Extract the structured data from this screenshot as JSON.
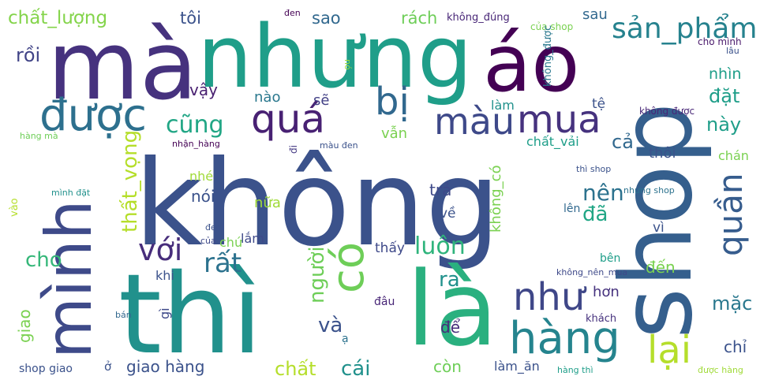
{
  "words": [
    {
      "text": "không",
      "color": "#3b528b"
    },
    {
      "text": "thì",
      "color": "#21918c"
    },
    {
      "text": "là",
      "color": "#2ab07f"
    },
    {
      "text": "shop",
      "color": "#355f8d"
    },
    {
      "text": "mà",
      "color": "#46327e"
    },
    {
      "text": "nhưng",
      "color": "#1f9e89"
    },
    {
      "text": "áo",
      "color": "#440154"
    },
    {
      "text": "mình",
      "color": "#3e4a89"
    },
    {
      "text": "được",
      "color": "#2d708e"
    },
    {
      "text": "có",
      "color": "#6ece58"
    },
    {
      "text": "quá",
      "color": "#482173"
    },
    {
      "text": "màu",
      "color": "#3e4989"
    },
    {
      "text": "mua",
      "color": "#46327e"
    },
    {
      "text": "bị",
      "color": "#31688e"
    },
    {
      "text": "sản_phẩm",
      "color": "#26828e"
    },
    {
      "text": "quần",
      "color": "#365c8d"
    },
    {
      "text": "hàng",
      "color": "#25848e"
    },
    {
      "text": "như",
      "color": "#3f4788"
    },
    {
      "text": "lại",
      "color": "#b5de2b"
    },
    {
      "text": "với",
      "color": "#472d7b"
    },
    {
      "text": "rất",
      "color": "#2c728e"
    },
    {
      "text": "luôn",
      "color": "#2fb47c"
    },
    {
      "text": "chất_lượng",
      "color": "#84d44b"
    },
    {
      "text": "rồi",
      "color": "#414487"
    },
    {
      "text": "tôi",
      "color": "#3b528b"
    },
    {
      "text": "sao",
      "color": "#31688e"
    },
    {
      "text": "rách",
      "color": "#6ece58"
    },
    {
      "text": "không_đúng",
      "color": "#482677"
    },
    {
      "text": "của shop",
      "color": "#7ad151"
    },
    {
      "text": "sau",
      "color": "#31688e"
    },
    {
      "text": "đen",
      "color": "#440154"
    },
    {
      "text": "nó",
      "color": "#a0da39"
    },
    {
      "text": "không_được",
      "color": "#2a788e"
    },
    {
      "text": "cho mình",
      "color": "#48186a"
    },
    {
      "text": "lâu",
      "color": "#3b528b"
    },
    {
      "text": "nhìn",
      "color": "#1f9e89"
    },
    {
      "text": "đặt",
      "color": "#1f9e89"
    },
    {
      "text": "này",
      "color": "#1f9e89"
    },
    {
      "text": "vậy",
      "color": "#481f70"
    },
    {
      "text": "nào",
      "color": "#2a788e"
    },
    {
      "text": "sẽ",
      "color": "#424086"
    },
    {
      "text": "làm",
      "color": "#21918c"
    },
    {
      "text": "tệ",
      "color": "#3b528b"
    },
    {
      "text": "không được",
      "color": "#482677"
    },
    {
      "text": "cũng",
      "color": "#21a685"
    },
    {
      "text": "vẫn",
      "color": "#7ad151"
    },
    {
      "text": "chất_vải",
      "color": "#1f9e89"
    },
    {
      "text": "cả",
      "color": "#31688e"
    },
    {
      "text": "hàng mà",
      "color": "#6ece58"
    },
    {
      "text": "nhận_hàng",
      "color": "#440154"
    },
    {
      "text": "màu đen",
      "color": "#3b528b"
    },
    {
      "text": "đi",
      "color": "#443983"
    },
    {
      "text": "nhé",
      "color": "#a0da39"
    },
    {
      "text": "thất_vọng",
      "color": "#b5de2b"
    },
    {
      "text": "không_có",
      "color": "#7ad151"
    },
    {
      "text": "thôi",
      "color": "#3b528b"
    },
    {
      "text": "chán",
      "color": "#7ad151"
    },
    {
      "text": "vào",
      "color": "#b5de2b"
    },
    {
      "text": "mình đặt",
      "color": "#21918c"
    },
    {
      "text": "nói",
      "color": "#3b528b"
    },
    {
      "text": "trả",
      "color": "#3e4989"
    },
    {
      "text": "thì shop",
      "color": "#3b528b"
    },
    {
      "text": "nhưng shop",
      "color": "#2c728e"
    },
    {
      "text": "nên",
      "color": "#2c728e"
    },
    {
      "text": "nữa",
      "color": "#a0da39"
    },
    {
      "text": "về",
      "color": "#3b528b"
    },
    {
      "text": "lên",
      "color": "#31688e"
    },
    {
      "text": "đã",
      "color": "#21a685"
    },
    {
      "text": "vì",
      "color": "#3b528b"
    },
    {
      "text": "đen",
      "color": "#3b528b"
    },
    {
      "text": "của",
      "color": "#3e4989"
    },
    {
      "text": "chứ",
      "color": "#7ad151"
    },
    {
      "text": "lắm",
      "color": "#3e4989"
    },
    {
      "text": "người",
      "color": "#6ece58"
    },
    {
      "text": "thấy",
      "color": "#3e4989"
    },
    {
      "text": "bên",
      "color": "#1f9e89"
    },
    {
      "text": "cho",
      "color": "#35b779"
    },
    {
      "text": "khi",
      "color": "#3b528b"
    },
    {
      "text": "ra",
      "color": "#21918c"
    },
    {
      "text": "không_nên_mua",
      "color": "#3e4989"
    },
    {
      "text": "đến",
      "color": "#7ad151"
    },
    {
      "text": "hơn",
      "color": "#46327e"
    },
    {
      "text": "giao",
      "color": "#7ad151"
    },
    {
      "text": "gì",
      "color": "#3e4989"
    },
    {
      "text": "và",
      "color": "#3b528b"
    },
    {
      "text": "đâu",
      "color": "#482677"
    },
    {
      "text": "mặc",
      "color": "#2a788e"
    },
    {
      "text": "bán",
      "color": "#31688e"
    },
    {
      "text": "ạ",
      "color": "#2c728e"
    },
    {
      "text": "để",
      "color": "#472d7b"
    },
    {
      "text": "khách",
      "color": "#46327e"
    },
    {
      "text": "chỉ",
      "color": "#3b528b"
    },
    {
      "text": "chất",
      "color": "#b5de2b"
    },
    {
      "text": "cái",
      "color": "#21918c"
    },
    {
      "text": "giao hàng",
      "color": "#3b528b"
    },
    {
      "text": "còn",
      "color": "#6ece58"
    },
    {
      "text": "làm_ăn",
      "color": "#3b528b"
    },
    {
      "text": "shop giao",
      "color": "#3b528b"
    },
    {
      "text": "ở",
      "color": "#3b528b"
    },
    {
      "text": "hàng thì",
      "color": "#1f9e89"
    },
    {
      "text": "được hàng",
      "color": "#a0da39"
    }
  ]
}
